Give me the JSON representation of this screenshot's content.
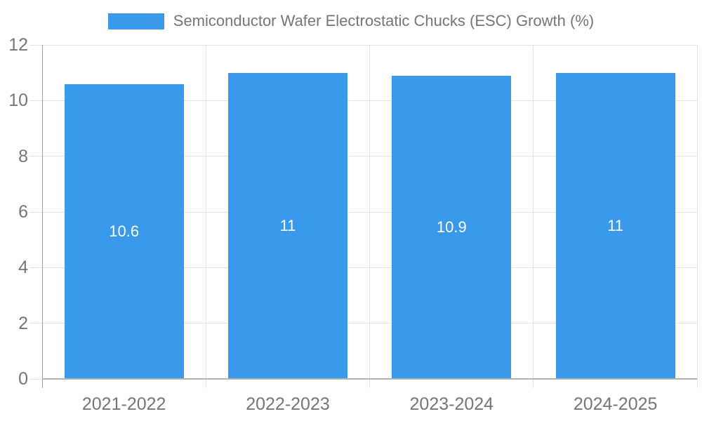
{
  "chart_data": {
    "type": "bar",
    "title": "Semiconductor Wafer Electrostatic Chucks (ESC) Growth (%)",
    "legend_position": "top",
    "categories": [
      "2021-2022",
      "2022-2023",
      "2023-2024",
      "2024-2025"
    ],
    "series": [
      {
        "name": "Semiconductor Wafer Electrostatic Chucks (ESC) Growth (%)",
        "values": [
          10.6,
          11,
          10.9,
          11
        ]
      }
    ],
    "value_labels": [
      "10.6",
      "11",
      "10.9",
      "11"
    ],
    "xlabel": "",
    "ylabel": "",
    "ylim": [
      0,
      12
    ],
    "yticks": [
      0,
      2,
      4,
      6,
      8,
      10,
      12
    ],
    "grid": true,
    "colors": {
      "bar": "#3b99ec",
      "value_label": "#ffffff",
      "axis_text": "#757575",
      "title_text": "#757575",
      "gridline": "#e2e2e2",
      "tick": "#e2e2e2",
      "y_axis_line": "#9e9e9e",
      "baseline": "#b2b2b2",
      "background": "#ffffff"
    }
  }
}
